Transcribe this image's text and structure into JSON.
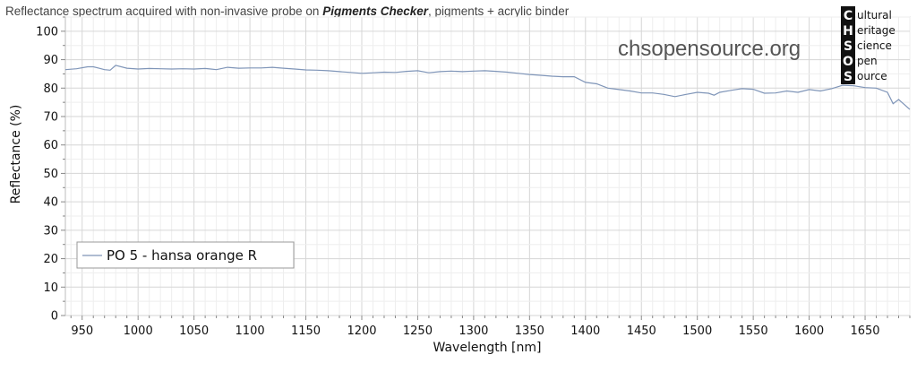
{
  "chart_data": {
    "type": "line",
    "title": {
      "prefix": "Reflectance spectrum acquired with non-invasive probe on ",
      "emphasis": "Pigments Checker",
      "suffix": ", pigments + acrylic binder"
    },
    "xlabel": "Wavelength [nm]",
    "ylabel": "Reflectance (%)",
    "xlim": [
      935,
      1690
    ],
    "ylim": [
      0,
      105
    ],
    "x_ticks": [
      950,
      1000,
      1050,
      1100,
      1150,
      1200,
      1250,
      1300,
      1350,
      1400,
      1450,
      1500,
      1550,
      1600,
      1650
    ],
    "y_ticks": [
      0,
      10,
      20,
      30,
      40,
      50,
      60,
      70,
      80,
      90,
      100
    ],
    "grid": true,
    "legend_position": "lower-left",
    "series": [
      {
        "name": "PO 5 - hansa orange R",
        "color": "#7f95b8",
        "x": [
          935,
          945,
          955,
          960,
          965,
          970,
          975,
          980,
          990,
          1000,
          1010,
          1020,
          1030,
          1040,
          1050,
          1060,
          1065,
          1070,
          1080,
          1090,
          1100,
          1110,
          1120,
          1130,
          1140,
          1150,
          1160,
          1170,
          1180,
          1190,
          1200,
          1210,
          1220,
          1230,
          1240,
          1250,
          1260,
          1270,
          1280,
          1290,
          1300,
          1310,
          1320,
          1330,
          1340,
          1350,
          1360,
          1370,
          1380,
          1390,
          1400,
          1410,
          1420,
          1430,
          1440,
          1450,
          1460,
          1470,
          1480,
          1490,
          1500,
          1510,
          1515,
          1520,
          1530,
          1540,
          1550,
          1560,
          1570,
          1580,
          1590,
          1600,
          1610,
          1620,
          1630,
          1640,
          1650,
          1660,
          1670,
          1675,
          1680,
          1690
        ],
        "y": [
          86.5,
          86.8,
          87.5,
          87.5,
          87,
          86.5,
          86.3,
          88,
          87,
          86.7,
          86.9,
          86.8,
          86.7,
          86.8,
          86.7,
          86.9,
          86.7,
          86.5,
          87.3,
          87,
          87.1,
          87.1,
          87.3,
          87,
          86.7,
          86.4,
          86.3,
          86.1,
          85.8,
          85.5,
          85.2,
          85.4,
          85.6,
          85.5,
          85.9,
          86.1,
          85.4,
          85.8,
          86,
          85.8,
          86,
          86.1,
          85.9,
          85.6,
          85.2,
          84.8,
          84.5,
          84.2,
          84,
          84,
          82,
          81.5,
          80,
          79.5,
          79,
          78.3,
          78.3,
          77.8,
          77,
          77.8,
          78.5,
          78.2,
          77.5,
          78.5,
          79.2,
          79.8,
          79.6,
          78.2,
          78.3,
          79,
          78.5,
          79.5,
          79,
          79.8,
          81,
          80.8,
          80.2,
          80,
          78.5,
          74.5,
          76,
          72.5
        ]
      }
    ]
  },
  "watermark": {
    "site": "chsopensource.org",
    "logo_letters": [
      "C",
      "H",
      "S",
      "O",
      "S"
    ],
    "logo_words": [
      "ultural",
      "eritage",
      "cience",
      "pen",
      "ource"
    ]
  }
}
